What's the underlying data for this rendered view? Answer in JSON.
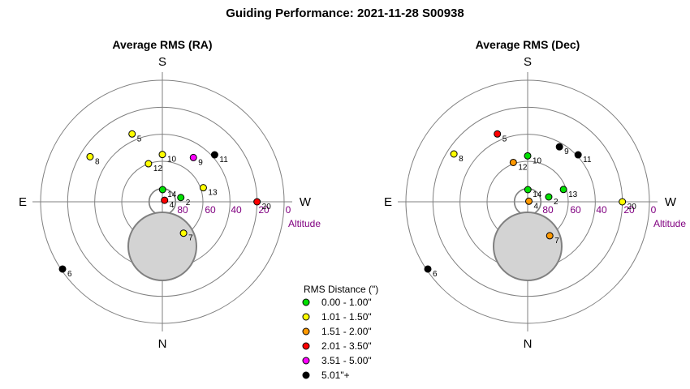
{
  "title": "Guiding Performance: 2021-11-28 S00938",
  "colors": {
    "0": "#00e000",
    "1": "#ffff00",
    "2": "#ff9900",
    "3": "#ff0000",
    "4": "#ff00ff",
    "5": "#000000"
  },
  "legend": {
    "title": "RMS Distance (\")",
    "items": [
      {
        "label": "0.00 - 1.00\"",
        "color": "#00e000"
      },
      {
        "label": "1.01 - 1.50\"",
        "color": "#ffff00"
      },
      {
        "label": "1.51 - 2.00\"",
        "color": "#ff9900"
      },
      {
        "label": "2.01 - 3.50\"",
        "color": "#ff0000"
      },
      {
        "label": "3.51 - 5.00\"",
        "color": "#ff00ff"
      },
      {
        "label": "5.01\"+",
        "color": "#000000"
      }
    ]
  },
  "compass": {
    "top": "S",
    "bottom": "N",
    "left": "E",
    "right": "W"
  },
  "altitude_axis": {
    "ticks": [
      "80",
      "60",
      "40",
      "20",
      "0"
    ],
    "title": "Altitude"
  },
  "chart_data": [
    {
      "type": "scatter",
      "projection": "polar-sky",
      "title": "Average RMS (RA)",
      "points": [
        {
          "label": "2",
          "alt": 76,
          "az": 283,
          "cls": 0
        },
        {
          "label": "4",
          "alt": 88,
          "az": 305,
          "cls": 3
        },
        {
          "label": "5",
          "alt": 35,
          "az": 24,
          "cls": 1
        },
        {
          "label": "6",
          "alt": 1,
          "az": 124,
          "cls": 5
        },
        {
          "label": "7",
          "alt": 62,
          "az": 214,
          "cls": 1
        },
        {
          "label": "8",
          "alt": 27,
          "az": 58,
          "cls": 1
        },
        {
          "label": "9",
          "alt": 50,
          "az": 325,
          "cls": 4
        },
        {
          "label": "10",
          "alt": 55,
          "az": 360,
          "cls": 1
        },
        {
          "label": "11",
          "alt": 38,
          "az": 312,
          "cls": 5
        },
        {
          "label": "12",
          "alt": 60,
          "az": 20,
          "cls": 1
        },
        {
          "label": "13",
          "alt": 58,
          "az": 289,
          "cls": 1
        },
        {
          "label": "14",
          "alt": 81,
          "az": 359,
          "cls": 0
        },
        {
          "label": "20",
          "alt": 20,
          "az": 270,
          "cls": 3
        }
      ]
    },
    {
      "type": "scatter",
      "projection": "polar-sky",
      "title": "Average RMS (Dec)",
      "points": [
        {
          "label": "2",
          "alt": 74,
          "az": 283,
          "cls": 0
        },
        {
          "label": "4",
          "alt": 89,
          "az": 295,
          "cls": 2
        },
        {
          "label": "5",
          "alt": 35,
          "az": 24,
          "cls": 3
        },
        {
          "label": "6",
          "alt": 1,
          "az": 124,
          "cls": 5
        },
        {
          "label": "7",
          "alt": 60,
          "az": 213,
          "cls": 2
        },
        {
          "label": "8",
          "alt": 25,
          "az": 57,
          "cls": 1
        },
        {
          "label": "9",
          "alt": 43,
          "az": 330,
          "cls": 5
        },
        {
          "label": "10",
          "alt": 56,
          "az": 360,
          "cls": 0
        },
        {
          "label": "11",
          "alt": 39,
          "az": 313,
          "cls": 5
        },
        {
          "label": "12",
          "alt": 59,
          "az": 20,
          "cls": 2
        },
        {
          "label": "13",
          "alt": 62,
          "az": 289,
          "cls": 0
        },
        {
          "label": "14",
          "alt": 81,
          "az": 359,
          "cls": 0
        },
        {
          "label": "20",
          "alt": 20,
          "az": 270,
          "cls": 1
        }
      ]
    }
  ]
}
